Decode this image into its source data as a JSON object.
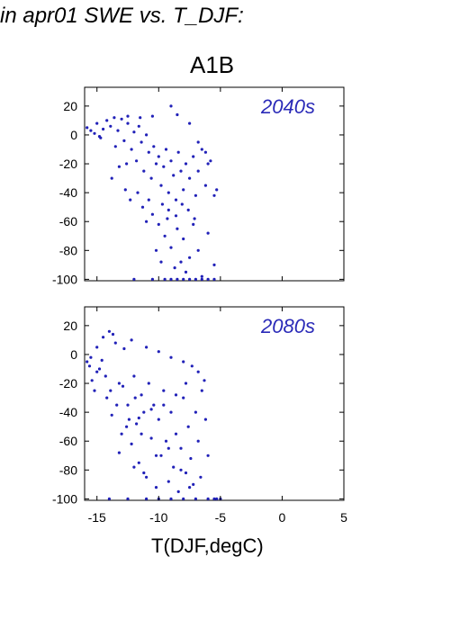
{
  "figure": {
    "heading": "in apr01 SWE vs. T_DJF:",
    "scenario": "A1B",
    "xlabel": "T(DJF,degC)"
  },
  "colors": {
    "points": "#2121b8",
    "panel_label": "#2a2ab8"
  },
  "chart_data": [
    {
      "type": "scatter",
      "panel_label": "2040s",
      "xlabel": "T(DJF,degC)",
      "xlim": [
        -16,
        5
      ],
      "ylim": [
        -101,
        33
      ],
      "xticks": [
        -15,
        -10,
        -5,
        0,
        5
      ],
      "yticks": [
        20,
        0,
        -20,
        -40,
        -60,
        -80,
        -100
      ],
      "points": [
        [
          -15.8,
          5
        ],
        [
          -15.5,
          3
        ],
        [
          -15.2,
          1
        ],
        [
          -15.0,
          8
        ],
        [
          -14.7,
          -2
        ],
        [
          -14.5,
          4
        ],
        [
          -14.2,
          10
        ],
        [
          -13.9,
          6
        ],
        [
          -13.6,
          12
        ],
        [
          -13.3,
          3
        ],
        [
          -13.0,
          11
        ],
        [
          -12.8,
          -4
        ],
        [
          -12.5,
          8
        ],
        [
          -12.2,
          -10
        ],
        [
          -12.0,
          2
        ],
        [
          -11.8,
          -18
        ],
        [
          -11.6,
          6
        ],
        [
          -11.4,
          -5
        ],
        [
          -11.2,
          -25
        ],
        [
          -11.0,
          0
        ],
        [
          -10.8,
          -12
        ],
        [
          -10.6,
          -30
        ],
        [
          -10.4,
          -8
        ],
        [
          -10.2,
          -20
        ],
        [
          -10.0,
          -15
        ],
        [
          -9.8,
          -35
        ],
        [
          -9.6,
          -22
        ],
        [
          -9.4,
          -10
        ],
        [
          -9.2,
          -40
        ],
        [
          -9.0,
          -18
        ],
        [
          -8.8,
          -28
        ],
        [
          -8.6,
          -45
        ],
        [
          -8.4,
          -12
        ],
        [
          -8.2,
          -25
        ],
        [
          -8.0,
          -38
        ],
        [
          -7.8,
          -20
        ],
        [
          -7.5,
          -30
        ],
        [
          -7.2,
          -15
        ],
        [
          -7.0,
          -42
        ],
        [
          -6.8,
          -25
        ],
        [
          -6.5,
          -10
        ],
        [
          -6.2,
          -35
        ],
        [
          -6.0,
          -20
        ],
        [
          -5.5,
          -42
        ],
        [
          -5.3,
          -38
        ],
        [
          -10.5,
          -55
        ],
        [
          -10.0,
          -62
        ],
        [
          -9.5,
          -70
        ],
        [
          -9.0,
          -78
        ],
        [
          -8.5,
          -65
        ],
        [
          -8.0,
          -72
        ],
        [
          -7.5,
          -85
        ],
        [
          -9.8,
          -88
        ],
        [
          -8.7,
          -92
        ],
        [
          -7.8,
          -95
        ],
        [
          -6.8,
          -80
        ],
        [
          -6.0,
          -68
        ],
        [
          -5.5,
          -90
        ],
        [
          -11.0,
          -60
        ],
        [
          -10.2,
          -80
        ],
        [
          -9.3,
          -58
        ],
        [
          -8.2,
          -88
        ],
        [
          -7.2,
          -62
        ],
        [
          -6.5,
          -98
        ],
        [
          -9.0,
          -100
        ],
        [
          -8.0,
          -100
        ],
        [
          -7.0,
          -100
        ],
        [
          -6.0,
          -100
        ],
        [
          -5.5,
          -100
        ],
        [
          -12.0,
          -100
        ],
        [
          -10.5,
          -100
        ],
        [
          -9.5,
          -100
        ],
        [
          -8.5,
          -100
        ],
        [
          -7.5,
          -100
        ],
        [
          -6.5,
          -100
        ],
        [
          -13.8,
          -30
        ],
        [
          -13.2,
          -22
        ],
        [
          -12.7,
          -38
        ],
        [
          -12.3,
          -45
        ],
        [
          -11.7,
          -40
        ],
        [
          -9.0,
          20
        ],
        [
          -8.5,
          14
        ],
        [
          -10.5,
          13
        ],
        [
          -11.5,
          12
        ],
        [
          -12.5,
          13
        ],
        [
          -7.5,
          8
        ],
        [
          -6.8,
          -5
        ],
        [
          -6.2,
          -12
        ],
        [
          -5.8,
          -18
        ],
        [
          -11.3,
          -50
        ],
        [
          -10.8,
          -45
        ],
        [
          -9.7,
          -48
        ],
        [
          -9.2,
          -52
        ],
        [
          -8.6,
          -56
        ],
        [
          -8.1,
          -48
        ],
        [
          -7.6,
          -52
        ],
        [
          -7.1,
          -58
        ],
        [
          -12.6,
          -20
        ],
        [
          -13.5,
          -8
        ],
        [
          -14.8,
          -1
        ]
      ]
    },
    {
      "type": "scatter",
      "panel_label": "2080s",
      "xlabel": "T(DJF,degC)",
      "xlim": [
        -16,
        5
      ],
      "ylim": [
        -101,
        33
      ],
      "xticks": [
        -15,
        -10,
        -5,
        0,
        5
      ],
      "yticks": [
        20,
        0,
        -20,
        -40,
        -60,
        -80,
        -100
      ],
      "points": [
        [
          -15.8,
          -5
        ],
        [
          -15.6,
          -8
        ],
        [
          -15.4,
          -18
        ],
        [
          -15.2,
          -25
        ],
        [
          -15.0,
          5
        ],
        [
          -14.8,
          -10
        ],
        [
          -14.5,
          12
        ],
        [
          -14.2,
          -30
        ],
        [
          -14.0,
          16
        ],
        [
          -13.8,
          -42
        ],
        [
          -13.5,
          8
        ],
        [
          -13.2,
          -20
        ],
        [
          -13.0,
          -55
        ],
        [
          -12.8,
          4
        ],
        [
          -12.5,
          -35
        ],
        [
          -12.2,
          -62
        ],
        [
          -12.0,
          -15
        ],
        [
          -11.8,
          -48
        ],
        [
          -11.6,
          -75
        ],
        [
          -11.4,
          -28
        ],
        [
          -11.2,
          -40
        ],
        [
          -11.0,
          -85
        ],
        [
          -10.8,
          -20
        ],
        [
          -10.6,
          -58
        ],
        [
          -10.4,
          -35
        ],
        [
          -10.2,
          -92
        ],
        [
          -10.0,
          -45
        ],
        [
          -9.8,
          -70
        ],
        [
          -9.6,
          -25
        ],
        [
          -9.4,
          -60
        ],
        [
          -9.2,
          -88
        ],
        [
          -9.0,
          -40
        ],
        [
          -8.8,
          -78
        ],
        [
          -8.6,
          -55
        ],
        [
          -8.4,
          -95
        ],
        [
          -8.2,
          -65
        ],
        [
          -8.0,
          -30
        ],
        [
          -7.8,
          -82
        ],
        [
          -7.6,
          -50
        ],
        [
          -7.4,
          -72
        ],
        [
          -7.2,
          -90
        ],
        [
          -7.0,
          -40
        ],
        [
          -6.8,
          -60
        ],
        [
          -6.5,
          -25
        ],
        [
          -6.2,
          -45
        ],
        [
          -6.0,
          -70
        ],
        [
          -5.5,
          -100
        ],
        [
          -5.3,
          -100
        ],
        [
          -5.0,
          -100
        ],
        [
          -6.0,
          -100
        ],
        [
          -7.0,
          -100
        ],
        [
          -8.0,
          -100
        ],
        [
          -9.0,
          -100
        ],
        [
          -10.0,
          -100
        ],
        [
          -11.0,
          -100
        ],
        [
          -12.5,
          -100
        ],
        [
          -14.0,
          -100
        ],
        [
          -13.7,
          14
        ],
        [
          -12.2,
          10
        ],
        [
          -11.0,
          5
        ],
        [
          -10.0,
          2
        ],
        [
          -9.0,
          -2
        ],
        [
          -8.0,
          -5
        ],
        [
          -7.3,
          -8
        ],
        [
          -6.8,
          -12
        ],
        [
          -6.3,
          -18
        ],
        [
          -7.8,
          -20
        ],
        [
          -8.6,
          -28
        ],
        [
          -9.6,
          -35
        ],
        [
          -10.6,
          -38
        ],
        [
          -11.6,
          -44
        ],
        [
          -12.6,
          -50
        ],
        [
          -13.2,
          -68
        ],
        [
          -12.0,
          -78
        ],
        [
          -11.2,
          -82
        ],
        [
          -10.2,
          -70
        ],
        [
          -9.2,
          -65
        ],
        [
          -8.2,
          -80
        ],
        [
          -7.5,
          -92
        ],
        [
          -6.6,
          -85
        ],
        [
          -15.5,
          -2
        ],
        [
          -15.0,
          -12
        ],
        [
          -14.6,
          -4
        ],
        [
          -14.3,
          -15
        ],
        [
          -13.9,
          -25
        ],
        [
          -13.4,
          -35
        ],
        [
          -12.9,
          -22
        ],
        [
          -12.4,
          -45
        ],
        [
          -11.9,
          -30
        ],
        [
          -11.4,
          -55
        ]
      ]
    }
  ]
}
